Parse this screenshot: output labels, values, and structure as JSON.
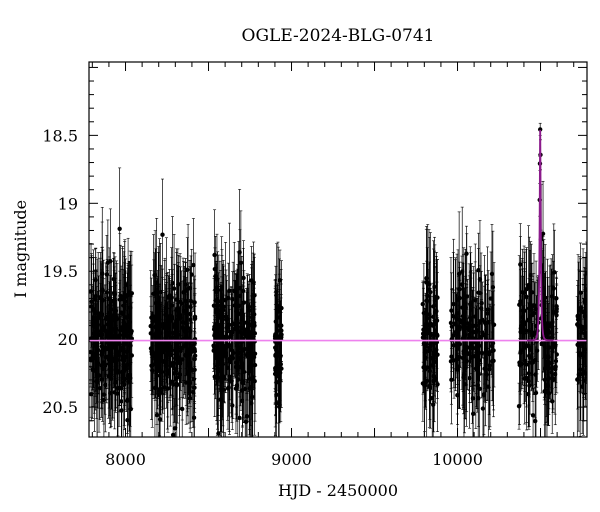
{
  "chart_data": {
    "type": "scatter",
    "title": "OGLE-2024-BLG-0741",
    "xlabel": "HJD - 2450000",
    "ylabel": "I magnitude",
    "xlim": [
      7780,
      10780
    ],
    "ylim": [
      20.72,
      17.96
    ],
    "y_inverted": true,
    "xticks": [
      8000,
      9000,
      10000
    ],
    "xtick_labels": [
      "8000",
      "9000",
      "10000"
    ],
    "yticks": [
      18.5,
      19,
      19.5,
      20,
      20.5
    ],
    "ytick_labels": [
      "18.5",
      "19",
      "19.5",
      "20",
      "20.5"
    ],
    "grid": false,
    "colors": {
      "points": "#000000",
      "model": "#8b1a8b",
      "baseline": "#ee82ee"
    },
    "seasons": [
      {
        "x_range": [
          7790,
          8040
        ],
        "count": 240,
        "mag_center": 20.0,
        "mag_scatter": 0.3
      },
      {
        "x_range": [
          8150,
          8420
        ],
        "count": 240,
        "mag_center": 20.0,
        "mag_scatter": 0.3
      },
      {
        "x_range": [
          8530,
          8780
        ],
        "count": 220,
        "mag_center": 20.0,
        "mag_scatter": 0.3
      },
      {
        "x_range": [
          8900,
          8940
        ],
        "count": 50,
        "mag_center": 20.05,
        "mag_scatter": 0.25
      },
      {
        "x_range": [
          9790,
          9880
        ],
        "count": 80,
        "mag_center": 20.0,
        "mag_scatter": 0.28
      },
      {
        "x_range": [
          9960,
          10220
        ],
        "count": 160,
        "mag_center": 20.0,
        "mag_scatter": 0.3
      },
      {
        "x_range": [
          10370,
          10600
        ],
        "count": 150,
        "mag_center": 20.0,
        "mag_scatter": 0.3
      },
      {
        "x_range": [
          10720,
          10780
        ],
        "count": 45,
        "mag_center": 20.0,
        "mag_scatter": 0.28
      }
    ],
    "series": [
      {
        "name": "",
        "kind": "points_with_errorbars"
      },
      {
        "name": "",
        "kind": "model_line",
        "baseline_mag": 20.01,
        "peak_mag": 18.46,
        "t0": 10498,
        "tE": 8
      },
      {
        "name": "",
        "kind": "baseline_line",
        "value": 20.01
      }
    ]
  }
}
